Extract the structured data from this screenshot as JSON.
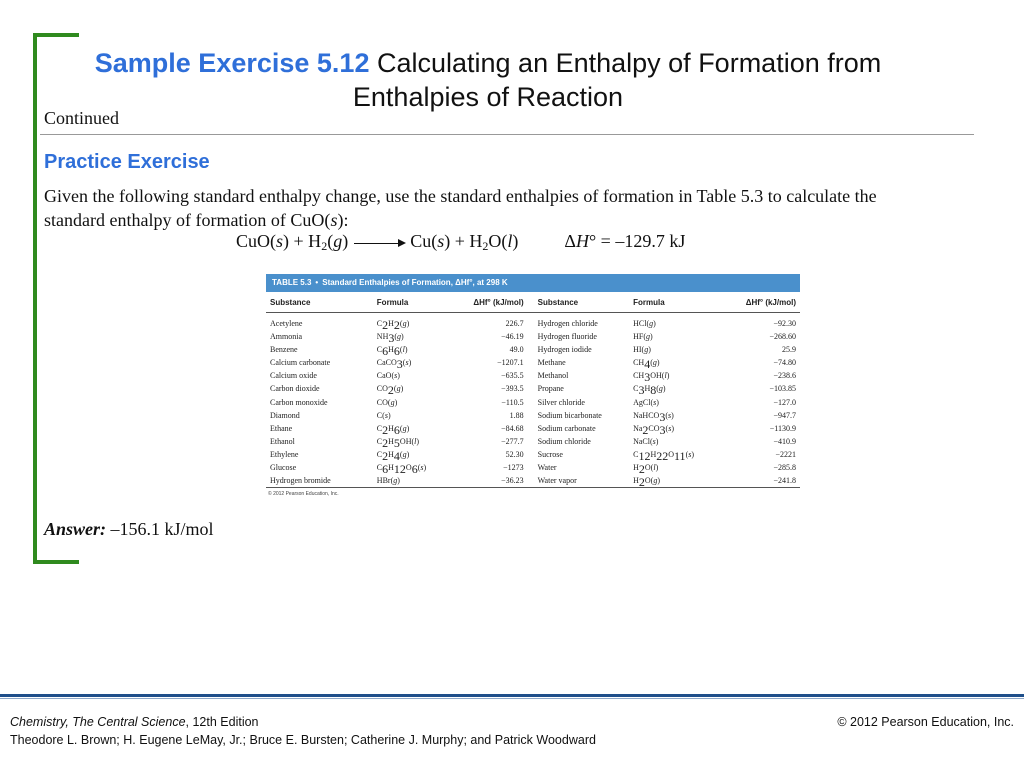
{
  "title": {
    "prefix": "Sample Exercise 5.12",
    "text": "Calculating an Enthalpy of Formation from Enthalpies of Reaction"
  },
  "continued": "Continued",
  "practice_heading": "Practice Exercise",
  "paragraph": {
    "before": "Given the following standard enthalpy change, use the standard enthalpies of formation in Table 5.3 to calculate the standard enthalpy of formation of CuO(",
    "state": "s",
    "after": "):"
  },
  "equation": {
    "reactants": "CuO(s) + H2(g)",
    "products": "Cu(s) + H2O(l)",
    "dh_value": "= –129.7 kJ"
  },
  "table": {
    "caption": "TABLE 5.3",
    "caption_title": "Standard Enthalpies of Formation, ΔHf°, at 298 K",
    "headers": [
      "Substance",
      "Formula",
      "ΔHf° (kJ/mol)",
      "Substance",
      "Formula",
      "ΔHf° (kJ/mol)"
    ],
    "rows": [
      [
        "Acetylene",
        "C2H2(g)",
        "226.7",
        "Hydrogen chloride",
        "HCl(g)",
        "−92.30"
      ],
      [
        "Ammonia",
        "NH3(g)",
        "−46.19",
        "Hydrogen fluoride",
        "HF(g)",
        "−268.60"
      ],
      [
        "Benzene",
        "C6H6(l)",
        "49.0",
        "Hydrogen iodide",
        "HI(g)",
        "25.9"
      ],
      [
        "Calcium carbonate",
        "CaCO3(s)",
        "−1207.1",
        "Methane",
        "CH4(g)",
        "−74.80"
      ],
      [
        "Calcium oxide",
        "CaO(s)",
        "−635.5",
        "Methanol",
        "CH3OH(l)",
        "−238.6"
      ],
      [
        "Carbon dioxide",
        "CO2(g)",
        "−393.5",
        "Propane",
        "C3H8(g)",
        "−103.85"
      ],
      [
        "Carbon monoxide",
        "CO(g)",
        "−110.5",
        "Silver chloride",
        "AgCl(s)",
        "−127.0"
      ],
      [
        "Diamond",
        "C(s)",
        "1.88",
        "Sodium bicarbonate",
        "NaHCO3(s)",
        "−947.7"
      ],
      [
        "Ethane",
        "C2H6(g)",
        "−84.68",
        "Sodium carbonate",
        "Na2CO3(s)",
        "−1130.9"
      ],
      [
        "Ethanol",
        "C2H5OH(l)",
        "−277.7",
        "Sodium chloride",
        "NaCl(s)",
        "−410.9"
      ],
      [
        "Ethylene",
        "C2H4(g)",
        "52.30",
        "Sucrose",
        "C12H22O11(s)",
        "−2221"
      ],
      [
        "Glucose",
        "C6H12O6(s)",
        "−1273",
        "Water",
        "H2O(l)",
        "−285.8"
      ],
      [
        "Hydrogen bromide",
        "HBr(g)",
        "−36.23",
        "Water vapor",
        "H2O(g)",
        "−241.8"
      ]
    ],
    "copyright": "© 2012 Pearson Education, Inc."
  },
  "answer": {
    "label": "Answer:",
    "value": "–156.1 kJ/mol"
  },
  "footer": {
    "book": "Chemistry, The Central Science",
    "edition": ", 12th Edition",
    "authors": "Theodore L. Brown; H. Eugene LeMay, Jr.; Bruce E. Bursten; Catherine J. Murphy; and Patrick Woodward",
    "copyright": "© 2012 Pearson Education, Inc."
  },
  "colors": {
    "accent_blue": "#2f6fd9",
    "bracket_green": "#2f8a1e",
    "table_header_blue": "#4a90cc",
    "footer_rule": "#1f4f8a"
  }
}
